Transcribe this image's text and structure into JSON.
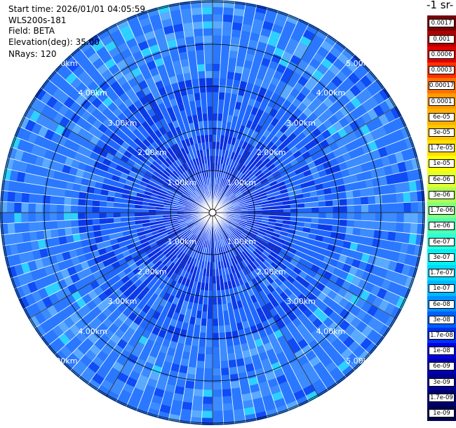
{
  "header": {
    "start_time": "Start time: 2026/01/01 04:05:59",
    "instrument": "WLS200s-181",
    "field": "Field: BETA",
    "elevation": "Elevation(deg): 35.00",
    "nrays": "NRays: 120"
  },
  "colorbar": {
    "units": "-1 sr-",
    "labels": [
      "0.0017",
      "0.001",
      "0.0006",
      "0.0003",
      "0.00017",
      "0.0001",
      "6e-05",
      "3e-05",
      "1.7e-05",
      "1e-05",
      "6e-06",
      "3e-06",
      "1.7e-06",
      "1e-06",
      "6e-07",
      "3e-07",
      "1.7e-07",
      "1e-07",
      "6e-08",
      "3e-08",
      "1.7e-08",
      "1e-08",
      "6e-09",
      "3e-09",
      "1.7e-09",
      "1e-09"
    ],
    "colors": [
      "#7a0000",
      "#b00000",
      "#e00000",
      "#ff3000",
      "#ff7000",
      "#ff9a00",
      "#ffb000",
      "#ffc800",
      "#ffe000",
      "#ffff00",
      "#e0ff30",
      "#b0ff50",
      "#80ff80",
      "#50ffb0",
      "#30ffd8",
      "#00f0f0",
      "#00d8ff",
      "#00b8ff",
      "#0090ff",
      "#0060ff",
      "#0030f0",
      "#0000e0",
      "#0000b0",
      "#000090",
      "#000070",
      "#000050"
    ]
  },
  "range_rings": {
    "labels": [
      "1.00km",
      "2.00km",
      "3.00km",
      "4.00km",
      "5.00km"
    ]
  },
  "chart_data": {
    "type": "heatmap",
    "projection": "polar-ppi",
    "field": "BETA",
    "nrays": 120,
    "elevation_deg": 35.0,
    "range_km": [
      0,
      6.0
    ],
    "ring_km": [
      1,
      2,
      3,
      4,
      5
    ],
    "typical_value_near_center": "1e-08",
    "typical_value_far": "6e-08",
    "colorscale": "log"
  }
}
